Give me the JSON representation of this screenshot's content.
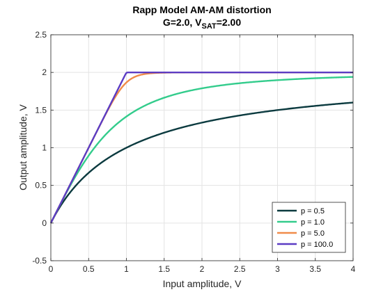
{
  "chart_data": {
    "type": "line",
    "title_line1": "Rapp Model AM-AM distortion",
    "title_line2": {
      "prefix": "G=2.0, V",
      "subscript": "SAT",
      "suffix": "=2.00"
    },
    "xlabel": "Input amplitude, V",
    "ylabel": "Output amplitude, V",
    "xlim": [
      0,
      4
    ],
    "ylim": [
      -0.5,
      2.5
    ],
    "xticks": [
      0,
      0.5,
      1,
      1.5,
      2,
      2.5,
      3,
      3.5,
      4
    ],
    "xtick_labels": [
      "0",
      "0.5",
      "1",
      "1.5",
      "2",
      "2.5",
      "3",
      "3.5",
      "4"
    ],
    "yticks": [
      -0.5,
      0,
      0.5,
      1,
      1.5,
      2,
      2.5
    ],
    "ytick_labels": [
      "-0.5",
      "0",
      "0.5",
      "1",
      "1.5",
      "2",
      "2.5"
    ],
    "grid": true,
    "legend_position": "bottom-right",
    "model": {
      "gain": 2.0,
      "vsat": 2.0
    },
    "series": [
      {
        "name": "p = 0.5",
        "p": 0.5,
        "color": "#0b3a3f"
      },
      {
        "name": "p = 1.0",
        "p": 1.0,
        "color": "#33cc8c"
      },
      {
        "name": "p = 5.0",
        "p": 5.0,
        "color": "#f08c4a"
      },
      {
        "name": "p = 100.0",
        "p": 100.0,
        "color": "#5b3cc4"
      }
    ]
  }
}
